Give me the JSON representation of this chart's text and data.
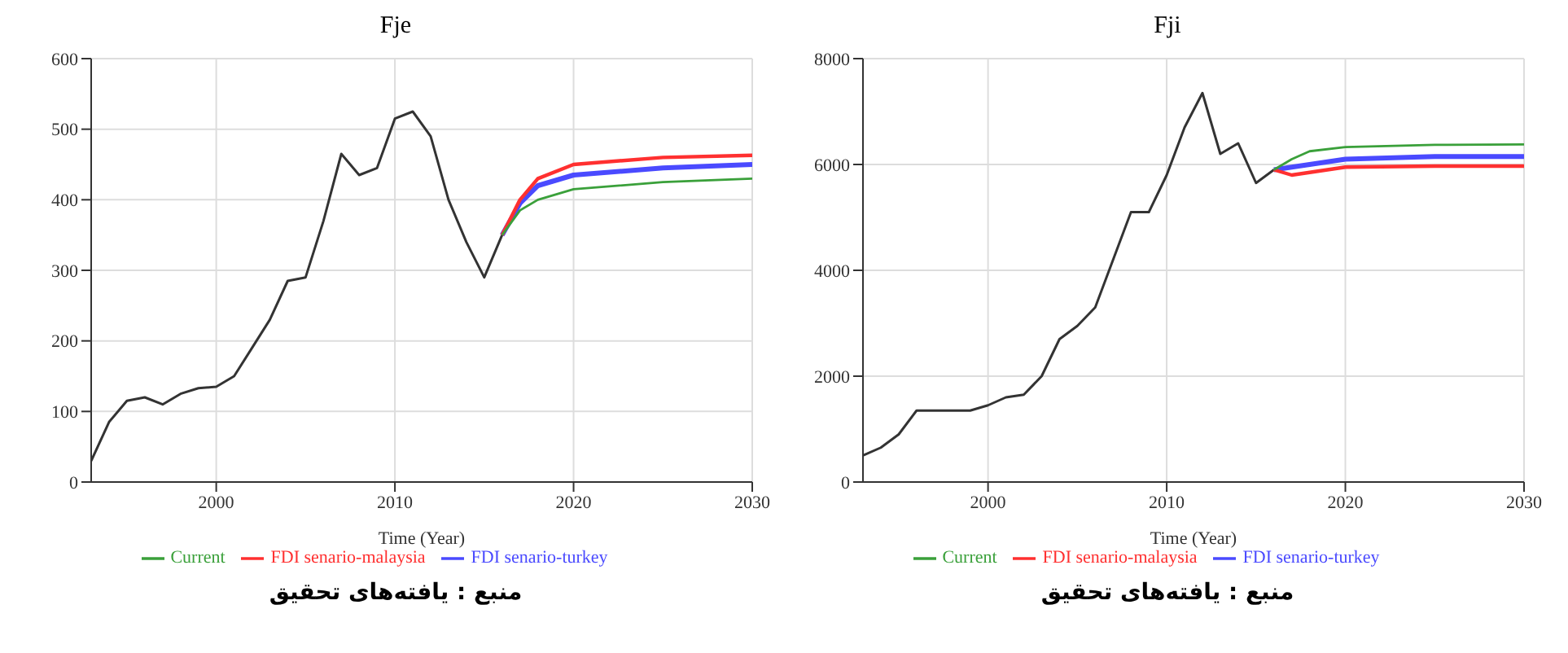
{
  "chart_data": [
    {
      "type": "line",
      "title": "Fje",
      "xlabel": "Time (Year)",
      "xlim": [
        1993,
        2030
      ],
      "xticks": [
        2000,
        2010,
        2020,
        2030
      ],
      "ylim": [
        0,
        600
      ],
      "yticks": [
        0,
        100,
        200,
        300,
        400,
        500,
        600
      ],
      "grid": true,
      "legend": "bottom",
      "annotations": [
        "منبع : یافته‌های تحقیق"
      ],
      "series": [
        {
          "color": "#333333",
          "x": [
            1993,
            1994,
            1995,
            1996,
            1997,
            1998,
            1999,
            2000,
            2001,
            2002,
            2003,
            2004,
            2005,
            2006,
            2007,
            2008,
            2009,
            2010,
            2011,
            2012,
            2013,
            2014,
            2015,
            2016
          ],
          "values": [
            30,
            85,
            115,
            120,
            110,
            125,
            133,
            135,
            150,
            190,
            230,
            285,
            290,
            370,
            465,
            435,
            445,
            515,
            525,
            490,
            400,
            340,
            290,
            350
          ]
        },
        {
          "name": "FDI senario-turkey",
          "color": "#4a4aff",
          "x": [
            2016,
            2017,
            2018,
            2020,
            2025,
            2030
          ],
          "values": [
            350,
            395,
            420,
            435,
            445,
            450
          ]
        },
        {
          "name": "FDI senario-malaysia",
          "color": "#ff3030",
          "x": [
            2016,
            2017,
            2018,
            2020,
            2025,
            2030
          ],
          "values": [
            350,
            400,
            430,
            450,
            460,
            463
          ]
        },
        {
          "name": "Current",
          "color": "#3aa03a",
          "x": [
            2016,
            2017,
            2018,
            2020,
            2025,
            2030
          ],
          "values": [
            350,
            385,
            400,
            415,
            425,
            430
          ]
        }
      ]
    },
    {
      "type": "line",
      "title": "Fji",
      "xlabel": "Time (Year)",
      "xlim": [
        1993,
        2030
      ],
      "xticks": [
        2000,
        2010,
        2020,
        2030
      ],
      "ylim": [
        0,
        8000
      ],
      "yticks": [
        0,
        2000,
        4000,
        6000,
        8000
      ],
      "grid": true,
      "legend": "bottom",
      "annotations": [
        "منبع : یافته‌های تحقیق"
      ],
      "series": [
        {
          "color": "#333333",
          "x": [
            1993,
            1994,
            1995,
            1996,
            1997,
            1998,
            1999,
            2000,
            2001,
            2002,
            2003,
            2004,
            2005,
            2006,
            2007,
            2008,
            2009,
            2010,
            2011,
            2012,
            2013,
            2014,
            2015,
            2016
          ],
          "values": [
            500,
            650,
            900,
            1350,
            1350,
            1350,
            1350,
            1450,
            1600,
            1650,
            2000,
            2700,
            2950,
            3300,
            4200,
            5100,
            5100,
            5800,
            6700,
            7350,
            6200,
            6400,
            5650,
            5900
          ]
        },
        {
          "name": "FDI senario-turkey",
          "color": "#4a4aff",
          "x": [
            2016,
            2017,
            2018,
            2020,
            2025,
            2030
          ],
          "values": [
            5900,
            5950,
            6000,
            6100,
            6150,
            6150
          ]
        },
        {
          "name": "FDI senario-malaysia",
          "color": "#ff3030",
          "x": [
            2016,
            2017,
            2018,
            2020,
            2025,
            2030
          ],
          "values": [
            5900,
            5800,
            5850,
            5950,
            5970,
            5970
          ]
        },
        {
          "name": "Current",
          "color": "#3aa03a",
          "x": [
            2016,
            2017,
            2018,
            2020,
            2025,
            2030
          ],
          "values": [
            5900,
            6100,
            6250,
            6330,
            6370,
            6380
          ]
        }
      ]
    }
  ]
}
